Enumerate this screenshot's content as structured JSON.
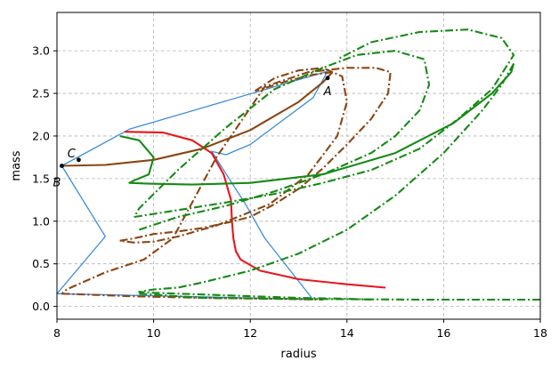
{
  "chart_data": {
    "type": "line",
    "title": "",
    "xlabel": "radius",
    "ylabel": "mass",
    "xlim": [
      8,
      18
    ],
    "ylim": [
      -0.15,
      3.45
    ],
    "xticks": [
      8,
      10,
      12,
      14,
      16,
      18
    ],
    "yticks": [
      0.0,
      0.5,
      1.0,
      1.5,
      2.0,
      2.5,
      3.0
    ],
    "xtick_labels": [
      "8",
      "10",
      "12",
      "14",
      "16",
      "18"
    ],
    "ytick_labels": [
      "0.0",
      "0.5",
      "1.0",
      "1.5",
      "2.0",
      "2.5",
      "3.0"
    ],
    "grid": true,
    "legend": "none",
    "colors": {
      "blue": "#3a8fdc",
      "red": "#e8161c",
      "brown": "#8b4513",
      "green": "#158a15"
    },
    "series": [
      {
        "color": "#3a8fdc",
        "style": "solid",
        "x": [
          13.6,
          13.3,
          12.0,
          11.5,
          11.2,
          11.9,
          12.3,
          13.3,
          12.0,
          8.0,
          9.0,
          8.1,
          9.5,
          13.6
        ],
        "y": [
          2.76,
          2.45,
          1.9,
          1.78,
          1.82,
          1.2,
          0.8,
          0.08,
          0.1,
          0.15,
          0.82,
          1.65,
          2.08,
          2.76
        ]
      },
      {
        "color": "#e8161c",
        "style": "solid",
        "x": [
          9.4,
          10.2,
          10.8,
          11.2,
          11.45,
          11.6,
          11.62,
          11.65,
          11.7,
          11.8,
          12.2,
          13.0,
          14.0,
          14.8
        ],
        "y": [
          2.05,
          2.04,
          1.95,
          1.8,
          1.55,
          1.25,
          1.0,
          0.8,
          0.65,
          0.55,
          0.42,
          0.32,
          0.26,
          0.22
        ]
      },
      {
        "color": "#8b4513",
        "style": "solid",
        "x": [
          8.1,
          9.0,
          10.0,
          11.0,
          12.0,
          13.0,
          13.5,
          13.7
        ],
        "y": [
          1.65,
          1.66,
          1.72,
          1.85,
          2.07,
          2.4,
          2.63,
          2.75
        ]
      },
      {
        "color": "#8b4513",
        "style": "dashdot",
        "x": [
          13.7,
          13.3,
          12.8,
          12.4,
          12.1
        ],
        "y": [
          2.75,
          2.72,
          2.65,
          2.58,
          2.53
        ]
      },
      {
        "color": "#8b4513",
        "style": "dashdot",
        "x": [
          12.1,
          12.5,
          13.0,
          13.5,
          13.9,
          14.0,
          13.8,
          13.2,
          12.4,
          11.3,
          10.5,
          10.0,
          9.6,
          9.3
        ],
        "y": [
          2.53,
          2.68,
          2.77,
          2.8,
          2.7,
          2.4,
          2.0,
          1.55,
          1.2,
          0.95,
          0.82,
          0.76,
          0.75,
          0.77
        ]
      },
      {
        "color": "#8b4513",
        "style": "dashdot",
        "x": [
          9.3,
          9.6,
          10.0,
          10.5,
          11.0,
          11.5,
          12.0,
          12.5,
          13.0,
          13.5,
          14.0,
          14.5,
          14.85,
          14.9,
          14.6,
          14.0,
          13.2,
          12.3,
          11.3,
          10.4,
          9.8,
          9.0,
          8.2,
          8.1
        ],
        "y": [
          0.77,
          0.8,
          0.85,
          0.88,
          0.92,
          0.98,
          1.05,
          1.2,
          1.38,
          1.62,
          1.9,
          2.2,
          2.5,
          2.75,
          2.8,
          2.8,
          2.75,
          2.58,
          1.75,
          0.8,
          0.55,
          0.4,
          0.2,
          0.15
        ]
      },
      {
        "color": "#8b4513",
        "style": "dashdot",
        "x": [
          8.1,
          9.5,
          11.0,
          12.5,
          13.5
        ],
        "y": [
          0.15,
          0.12,
          0.1,
          0.09,
          0.08
        ]
      },
      {
        "color": "#158a15",
        "style": "solid",
        "x": [
          9.3,
          9.7,
          10.0,
          9.9,
          9.6,
          9.5,
          9.9,
          10.8,
          12.0,
          13.5,
          15.0,
          16.2,
          17.0,
          17.4,
          17.45
        ],
        "y": [
          2.0,
          1.95,
          1.75,
          1.55,
          1.48,
          1.45,
          1.44,
          1.43,
          1.45,
          1.55,
          1.8,
          2.15,
          2.5,
          2.75,
          2.85
        ]
      },
      {
        "color": "#158a15",
        "style": "dashdot",
        "x": [
          17.45,
          17.2,
          16.8,
          16.0,
          15.0,
          14.0,
          13.0,
          12.0,
          11.0,
          10.5,
          10.0,
          9.8,
          9.7,
          10.0,
          11.0,
          12.0,
          13.0,
          14.0,
          14.5
        ],
        "y": [
          2.85,
          2.6,
          2.3,
          1.8,
          1.3,
          0.9,
          0.62,
          0.42,
          0.28,
          0.22,
          0.2,
          0.18,
          0.17,
          0.16,
          0.14,
          0.12,
          0.1,
          0.09,
          0.08
        ]
      },
      {
        "color": "#158a15",
        "style": "dashdot",
        "x": [
          9.7,
          10.5,
          11.5,
          12.5,
          13.5,
          14.5,
          15.0,
          15.5,
          15.7,
          15.6,
          15.0,
          14.2,
          13.5,
          12.5,
          11.5,
          10.5,
          9.7,
          9.6
        ],
        "y": [
          0.9,
          1.05,
          1.18,
          1.35,
          1.55,
          1.8,
          2.0,
          2.3,
          2.6,
          2.9,
          3.0,
          2.95,
          2.8,
          2.55,
          2.1,
          1.6,
          1.15,
          1.05
        ]
      },
      {
        "color": "#158a15",
        "style": "dashdot",
        "x": [
          9.6,
          10.5,
          11.5,
          12.5,
          13.5,
          14.5,
          15.5,
          16.3,
          17.0,
          17.45,
          17.2,
          16.5,
          15.5,
          14.5,
          13.8
        ],
        "y": [
          1.05,
          1.13,
          1.22,
          1.32,
          1.45,
          1.6,
          1.85,
          2.2,
          2.55,
          2.95,
          3.15,
          3.25,
          3.22,
          3.1,
          2.9
        ]
      },
      {
        "color": "#158a15",
        "style": "dashdot",
        "x": [
          9.7,
          11.0,
          12.5,
          14.0,
          15.5,
          17.0,
          18.0
        ],
        "y": [
          0.15,
          0.1,
          0.09,
          0.085,
          0.08,
          0.08,
          0.08
        ]
      }
    ],
    "annotations": [
      {
        "text": "A",
        "x": 13.6,
        "y": 2.53
      },
      {
        "text": "B",
        "x": 8.0,
        "y": 1.46
      },
      {
        "text": "C",
        "x": 8.3,
        "y": 1.8
      }
    ],
    "markers": [
      {
        "x": 8.1,
        "y": 1.65
      },
      {
        "x": 13.6,
        "y": 2.68
      },
      {
        "x": 8.45,
        "y": 1.72
      }
    ]
  }
}
